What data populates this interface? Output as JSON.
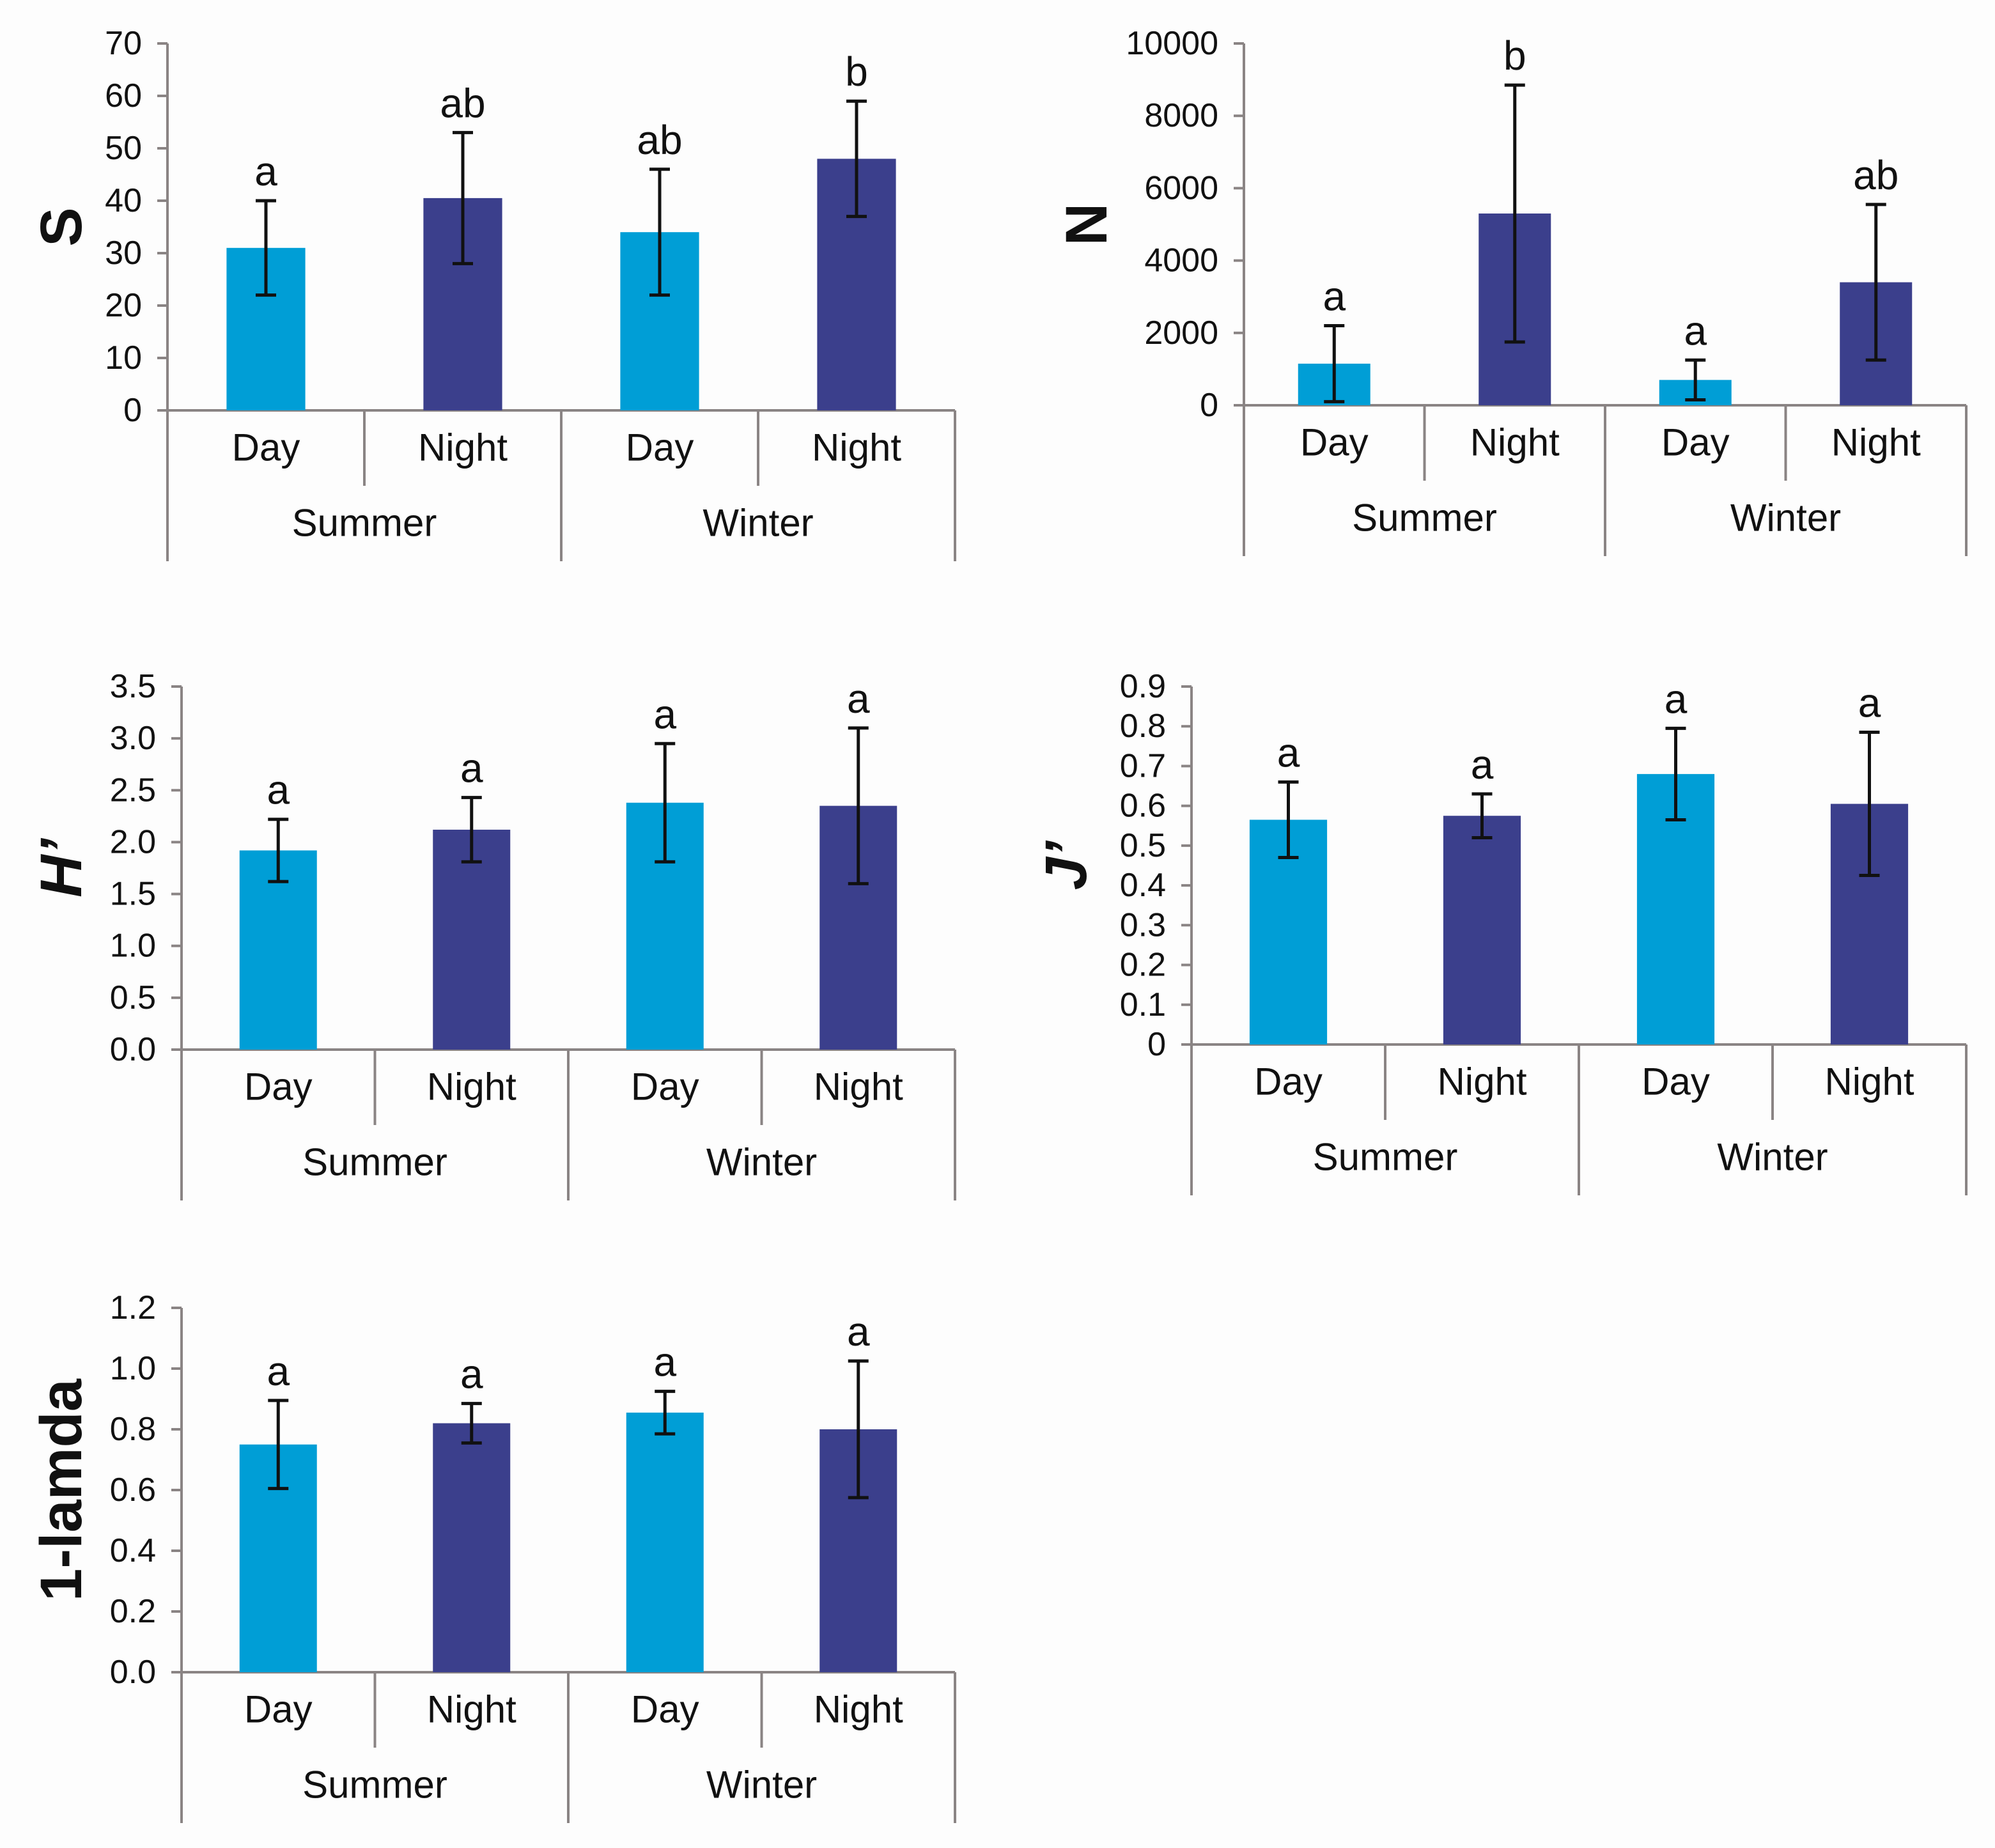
{
  "colors": {
    "day": "#009ed6",
    "night": "#3b3f8c"
  },
  "chart_data": [
    {
      "type": "bar",
      "ylabel": "S",
      "ylabel_italic": false,
      "ylim": [
        0,
        70
      ],
      "yticks": [
        0,
        10,
        20,
        30,
        40,
        50,
        60,
        70
      ],
      "ytick_labels": [
        "0",
        "10",
        "20",
        "30",
        "40",
        "50",
        "60",
        "70"
      ],
      "categories": [
        "Day",
        "Night",
        "Day",
        "Night"
      ],
      "groups": [
        "Summer",
        "Winter"
      ],
      "values": [
        31,
        40.5,
        34,
        48
      ],
      "errors": [
        9,
        12.5,
        12,
        11
      ],
      "significance": [
        "a",
        "ab",
        "ab",
        "b"
      ],
      "series_colors": [
        "day",
        "night",
        "day",
        "night"
      ]
    },
    {
      "type": "bar",
      "ylabel": "N",
      "ylabel_italic": false,
      "ylim": [
        0,
        10000
      ],
      "yticks": [
        0,
        2000,
        4000,
        6000,
        8000,
        10000
      ],
      "ytick_labels": [
        "0",
        "2000",
        "4000",
        "6000",
        "8000",
        "10000"
      ],
      "categories": [
        "Day",
        "Night",
        "Day",
        "Night"
      ],
      "groups": [
        "Summer",
        "Winter"
      ],
      "values": [
        1150,
        5300,
        700,
        3400
      ],
      "errors": [
        1050,
        3550,
        550,
        2150
      ],
      "significance": [
        "a",
        "b",
        "a",
        "ab"
      ],
      "series_colors": [
        "day",
        "night",
        "day",
        "night"
      ]
    },
    {
      "type": "bar",
      "ylabel": "H’",
      "ylabel_italic": true,
      "ylim": [
        0,
        3.5
      ],
      "yticks": [
        0,
        0.5,
        1,
        1.5,
        2,
        2.5,
        3,
        3.5
      ],
      "ytick_labels": [
        "0.0",
        "0.5",
        "1.0",
        "1.5",
        "2.0",
        "2.5",
        "3.0",
        "3.5"
      ],
      "categories": [
        "Day",
        "Night",
        "Day",
        "Night"
      ],
      "groups": [
        "Summer",
        "Winter"
      ],
      "values": [
        1.92,
        2.12,
        2.38,
        2.35
      ],
      "errors": [
        0.3,
        0.31,
        0.57,
        0.75
      ],
      "significance": [
        "a",
        "a",
        "a",
        "a"
      ],
      "series_colors": [
        "day",
        "night",
        "day",
        "night"
      ]
    },
    {
      "type": "bar",
      "ylabel": "J’",
      "ylabel_italic": true,
      "ylim": [
        0,
        0.9
      ],
      "yticks": [
        0,
        0.1,
        0.2,
        0.3,
        0.4,
        0.5,
        0.6,
        0.7,
        0.8,
        0.9
      ],
      "ytick_labels": [
        "0",
        "0.1",
        "0.2",
        "0.3",
        "0.4",
        "0.5",
        "0.6",
        "0.7",
        "0.8",
        "0.9"
      ],
      "categories": [
        "Day",
        "Night",
        "Day",
        "Night"
      ],
      "groups": [
        "Summer",
        "Winter"
      ],
      "values": [
        0.565,
        0.575,
        0.68,
        0.605
      ],
      "errors": [
        0.095,
        0.055,
        0.115,
        0.18
      ],
      "significance": [
        "a",
        "a",
        "a",
        "a"
      ],
      "series_colors": [
        "day",
        "night",
        "day",
        "night"
      ]
    },
    {
      "type": "bar",
      "ylabel": "1-lamda",
      "ylabel_italic": false,
      "ylim": [
        0,
        1.2
      ],
      "yticks": [
        0,
        0.2,
        0.4,
        0.6,
        0.8,
        1,
        1.2
      ],
      "ytick_labels": [
        "0.0",
        "0.2",
        "0.4",
        "0.6",
        "0.8",
        "1.0",
        "1.2"
      ],
      "categories": [
        "Day",
        "Night",
        "Day",
        "Night"
      ],
      "groups": [
        "Summer",
        "Winter"
      ],
      "values": [
        0.75,
        0.82,
        0.855,
        0.8
      ],
      "errors": [
        0.145,
        0.065,
        0.07,
        0.225
      ],
      "significance": [
        "a",
        "a",
        "a",
        "a"
      ],
      "series_colors": [
        "day",
        "night",
        "day",
        "night"
      ]
    }
  ]
}
